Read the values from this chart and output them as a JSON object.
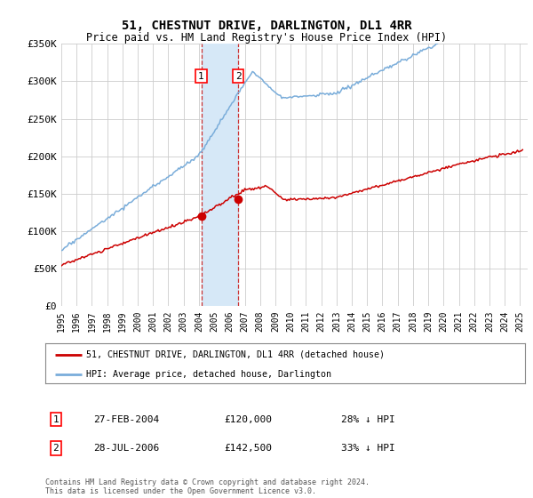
{
  "title": "51, CHESTNUT DRIVE, DARLINGTON, DL1 4RR",
  "subtitle": "Price paid vs. HM Land Registry's House Price Index (HPI)",
  "legend_line1": "51, CHESTNUT DRIVE, DARLINGTON, DL1 4RR (detached house)",
  "legend_line2": "HPI: Average price, detached house, Darlington",
  "transaction1_date": "27-FEB-2004",
  "transaction1_price": "£120,000",
  "transaction1_hpi": "28% ↓ HPI",
  "transaction2_date": "28-JUL-2006",
  "transaction2_price": "£142,500",
  "transaction2_hpi": "33% ↓ HPI",
  "footer": "Contains HM Land Registry data © Crown copyright and database right 2024.\nThis data is licensed under the Open Government Licence v3.0.",
  "ylim": [
    0,
    350000
  ],
  "yticks": [
    0,
    50000,
    100000,
    150000,
    200000,
    250000,
    300000,
    350000
  ],
  "ytick_labels": [
    "£0",
    "£50K",
    "£100K",
    "£150K",
    "£200K",
    "£250K",
    "£300K",
    "£350K"
  ],
  "xlim_start": 1995.0,
  "xlim_end": 2025.5,
  "transaction1_x": 2004.15,
  "transaction1_y": 120000,
  "transaction2_x": 2006.57,
  "transaction2_y": 142500,
  "shade_color": "#d6e8f7",
  "line_red": "#cc0000",
  "line_blue": "#7aadda",
  "bg_color": "#ffffff",
  "grid_color": "#cccccc"
}
